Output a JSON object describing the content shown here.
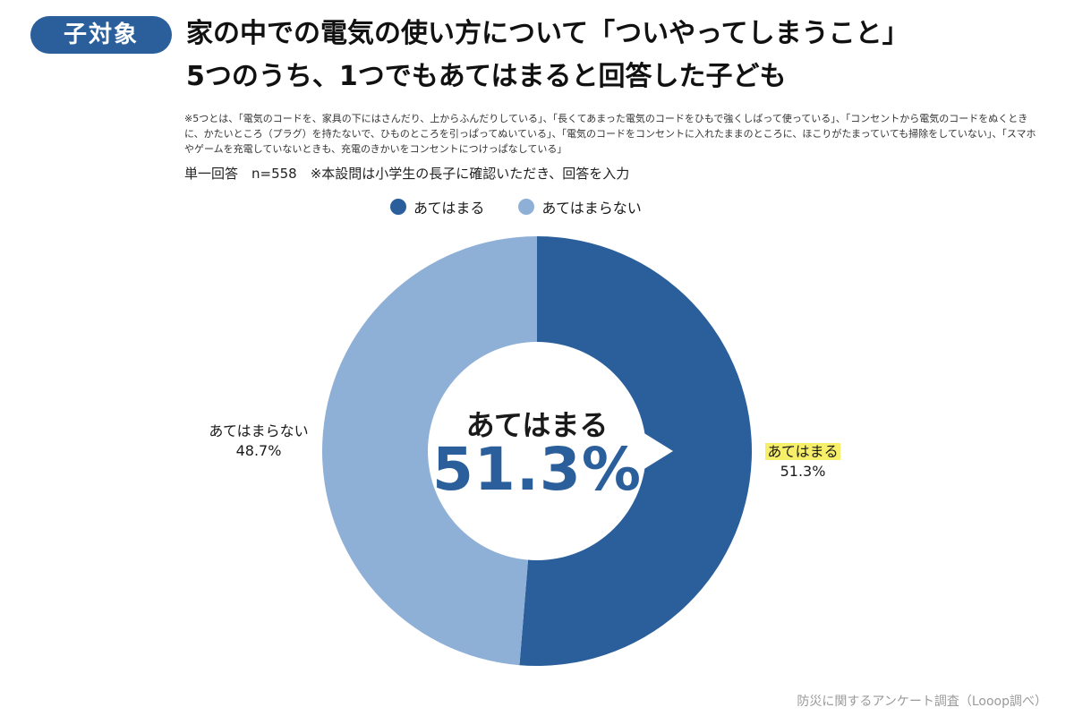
{
  "header": {
    "badge": "子対象",
    "title_line1": "家の中での電気の使い方について「ついやってしまうこと」",
    "title_line2": "5つのうち、1つでもあてはまると回答した子ども"
  },
  "note": "※5つとは、「電気のコードを、家具の下にはさんだり、上からふんだりしている」、「長くてあまった電気のコードをひもで強くしばって使っている」、「コンセントから電気のコードをぬくときに、かたいところ（プラグ）を持たないで、ひものところを引っぱってぬいている」、「電気のコードをコンセントに入れたままのところに、ほこりがたまっていても掃除をしていない」、「スマホやゲームを充電していないときも、充電のきかいをコンセントにつけっぱなしている」",
  "meta": "単一回答　n=558　※本設問は小学生の長子に確認いただき、回答を入力",
  "chart_data": {
    "type": "pie",
    "donut": true,
    "slices": [
      {
        "label": "あてはまる",
        "value": 51.3,
        "value_text": "51.3%",
        "color": "#2a5f9c"
      },
      {
        "label": "あてはまらない",
        "value": 48.7,
        "value_text": "48.7%",
        "color": "#8fb0d6"
      }
    ],
    "legend": [
      "あてはまる",
      "あてはまらない"
    ],
    "legend_position": "top",
    "center_label": "あてはまる",
    "center_value": "51.3%"
  },
  "source": "防災に関するアンケート調査（Looop調べ）"
}
